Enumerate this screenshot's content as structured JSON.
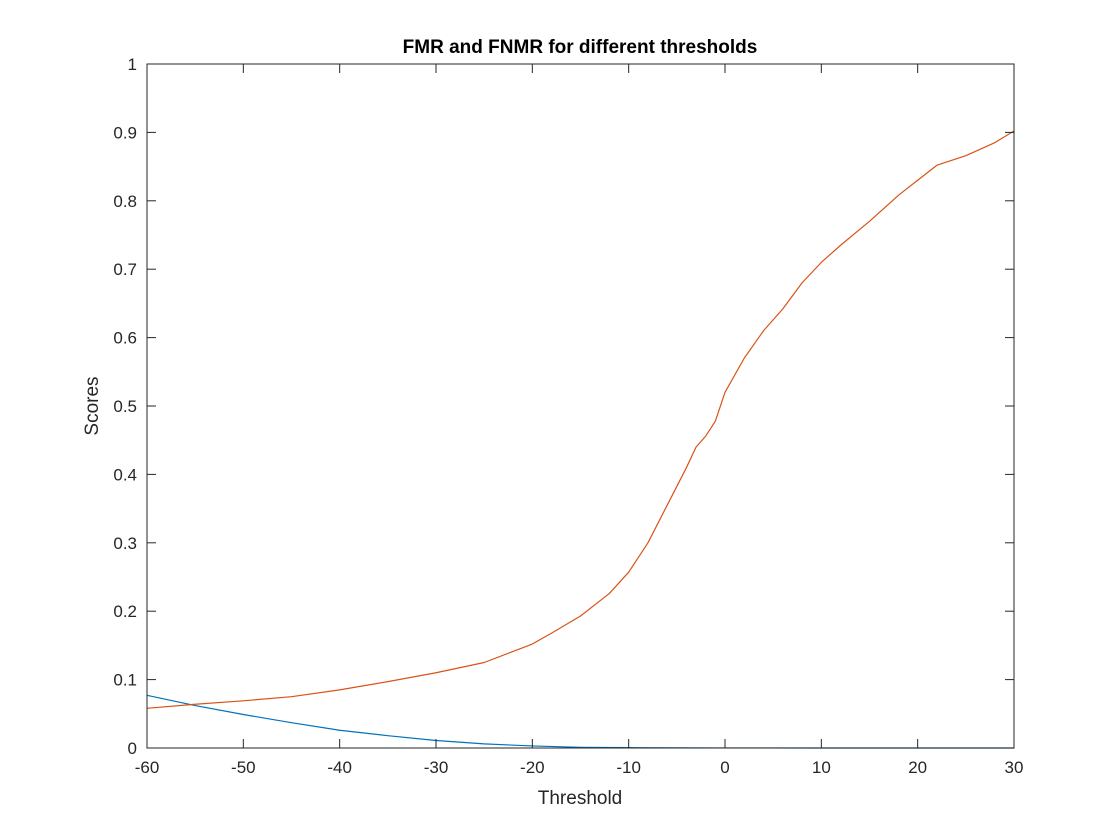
{
  "chart_data": {
    "type": "line",
    "title": "FMR and FNMR for different thresholds",
    "xlabel": "Threshold",
    "ylabel": "Scores",
    "xlim": [
      -60,
      30
    ],
    "ylim": [
      0,
      1
    ],
    "xticks": [
      -60,
      -50,
      -40,
      -30,
      -20,
      -10,
      0,
      10,
      20,
      30
    ],
    "yticks": [
      0,
      0.1,
      0.2,
      0.3,
      0.4,
      0.5,
      0.6,
      0.7,
      0.8,
      0.9,
      1
    ],
    "grid": false,
    "legend": "none",
    "series": [
      {
        "color": "#0072BD",
        "x": [
          -60,
          -55,
          -50,
          -45,
          -40,
          -35,
          -30,
          -25,
          -20,
          -15,
          -10,
          -5,
          0,
          10,
          20,
          30
        ],
        "y": [
          0.077,
          0.062,
          0.049,
          0.037,
          0.026,
          0.018,
          0.011,
          0.006,
          0.003,
          0.001,
          0.0005,
          0.0002,
          0.0001,
          0.0,
          0.0,
          0.0
        ]
      },
      {
        "color": "#D95319",
        "x": [
          -60,
          -55,
          -50,
          -45,
          -40,
          -35,
          -30,
          -25,
          -20,
          -18,
          -15,
          -12,
          -10,
          -8,
          -6,
          -4,
          -3,
          -2,
          -1,
          0,
          2,
          4,
          6,
          8,
          10,
          12,
          15,
          18,
          20,
          22,
          25,
          28,
          30
        ],
        "y": [
          0.058,
          0.064,
          0.069,
          0.075,
          0.085,
          0.097,
          0.11,
          0.125,
          0.152,
          0.168,
          0.193,
          0.226,
          0.257,
          0.3,
          0.355,
          0.41,
          0.44,
          0.456,
          0.478,
          0.52,
          0.57,
          0.61,
          0.642,
          0.68,
          0.71,
          0.735,
          0.77,
          0.808,
          0.83,
          0.852,
          0.866,
          0.885,
          0.902
        ]
      }
    ]
  }
}
